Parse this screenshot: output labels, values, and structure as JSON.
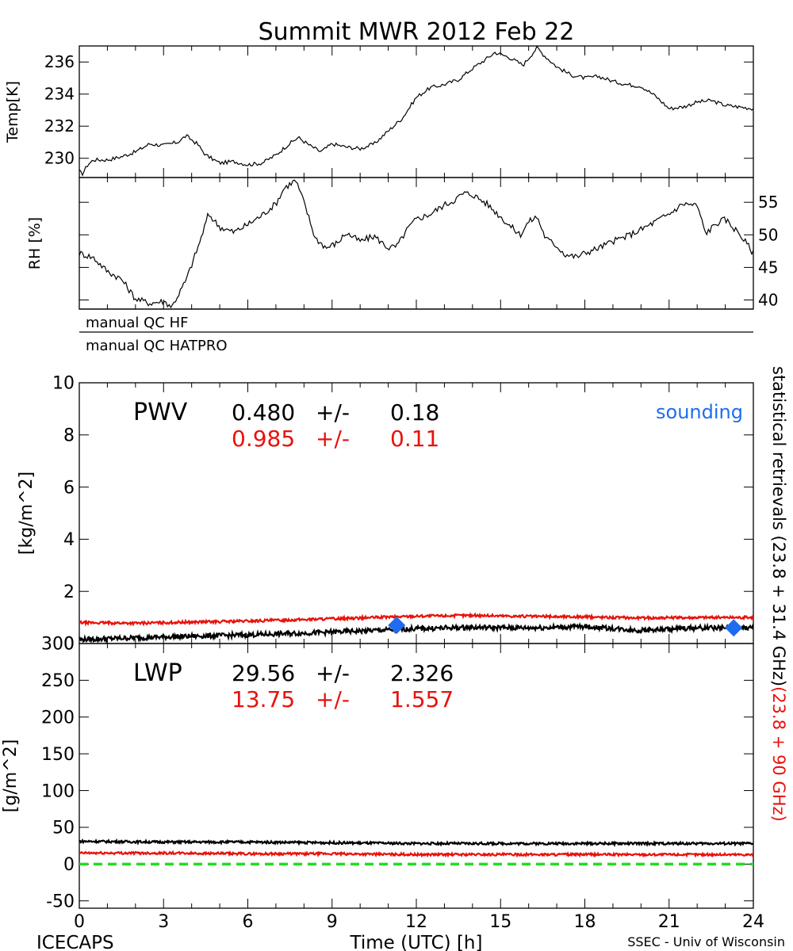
{
  "title": "Summit MWR 2012 Feb 22",
  "footer": {
    "left": "ICECAPS",
    "right": "SSEC - Univ of Wisconsin"
  },
  "colors": {
    "black": "#000000",
    "red": "#e8120c",
    "blue": "#1e6cf0",
    "green": "#22dd22"
  },
  "qc_labels": [
    "manual  QC  HF",
    "manual  QC  HATPRO"
  ],
  "right_vertical_label": {
    "black_part": "statistical  retrievals  (23.8 + 31.4 GHz)",
    "red_part": "(23.8 + 90 GHz)"
  },
  "chart_data": [
    {
      "id": "temp",
      "type": "line",
      "ylabel": "Temp[K]",
      "xlim": [
        0,
        24
      ],
      "ylim": [
        228.8,
        237.0
      ],
      "yticks": [
        230,
        232,
        234,
        236
      ],
      "series": [
        {
          "color": "#000000",
          "x": [
            0.0,
            0.1,
            0.3,
            0.5,
            1.0,
            1.5,
            2.0,
            2.5,
            3.0,
            3.5,
            3.8,
            4.2,
            4.5,
            5.0,
            5.5,
            6.0,
            6.5,
            7.0,
            7.4,
            7.8,
            8.2,
            8.6,
            9.0,
            9.5,
            10.0,
            10.5,
            11.0,
            11.5,
            12.0,
            12.5,
            13.0,
            13.5,
            14.0,
            14.5,
            14.8,
            15.3,
            15.8,
            16.3,
            16.5,
            17.0,
            17.5,
            18.0,
            18.5,
            19.0,
            19.5,
            20.0,
            20.5,
            21.0,
            21.5,
            22.0,
            22.5,
            23.0,
            23.5,
            24.0
          ],
          "y": [
            229.2,
            229.0,
            229.6,
            229.9,
            229.9,
            230.1,
            230.4,
            230.9,
            230.8,
            231.0,
            231.4,
            230.9,
            230.2,
            229.7,
            229.8,
            229.6,
            229.7,
            230.2,
            230.8,
            231.3,
            230.8,
            230.4,
            230.9,
            230.7,
            230.6,
            230.9,
            231.7,
            232.5,
            233.8,
            234.4,
            234.6,
            234.9,
            235.6,
            236.2,
            236.6,
            236.3,
            235.8,
            236.9,
            236.5,
            235.7,
            235.2,
            235.0,
            235.1,
            234.8,
            234.6,
            234.5,
            233.9,
            233.1,
            233.2,
            233.5,
            233.6,
            233.3,
            233.2,
            233.1
          ]
        }
      ]
    },
    {
      "id": "rh",
      "type": "line",
      "ylabel": "RH [%]",
      "xlim": [
        0,
        24
      ],
      "ylim": [
        38.6,
        58.8
      ],
      "yticks": [
        40,
        45,
        50,
        55
      ],
      "series": [
        {
          "color": "#000000",
          "x": [
            0.0,
            0.5,
            1.0,
            1.5,
            2.0,
            2.5,
            3.0,
            3.3,
            3.8,
            4.3,
            4.6,
            5.0,
            5.5,
            6.0,
            6.5,
            7.0,
            7.3,
            7.7,
            8.0,
            8.4,
            8.8,
            9.2,
            9.5,
            10.0,
            10.5,
            11.0,
            11.3,
            11.7,
            12.0,
            12.5,
            13.0,
            13.3,
            13.7,
            14.0,
            14.5,
            15.0,
            15.3,
            15.7,
            16.0,
            16.3,
            16.6,
            17.0,
            17.3,
            17.7,
            18.0,
            18.5,
            19.0,
            19.5,
            20.0,
            20.5,
            21.0,
            21.5,
            22.0,
            22.3,
            22.7,
            23.0,
            23.5,
            24.0
          ],
          "y": [
            47.2,
            46.5,
            44.4,
            43.2,
            40.2,
            39.5,
            39.8,
            39.0,
            43.0,
            49.0,
            53.2,
            51.2,
            50.4,
            51.6,
            53.0,
            54.8,
            57.2,
            58.4,
            55.0,
            49.5,
            48.0,
            48.8,
            50.3,
            49.0,
            49.8,
            48.0,
            48.2,
            51.0,
            52.4,
            53.2,
            54.6,
            55.2,
            56.4,
            56.2,
            54.8,
            52.8,
            51.5,
            50.0,
            52.0,
            52.8,
            49.5,
            48.3,
            47.0,
            46.6,
            47.2,
            48.0,
            49.0,
            49.8,
            50.8,
            52.0,
            53.2,
            54.8,
            54.5,
            50.2,
            51.8,
            52.4,
            50.2,
            47.2
          ]
        }
      ]
    },
    {
      "id": "pwv",
      "type": "line",
      "ylabel": "[kg/m^2]",
      "xlim": [
        0,
        24
      ],
      "ylim": [
        0,
        10
      ],
      "yticks": [
        0,
        2,
        4,
        6,
        8,
        10
      ],
      "label": "PWV",
      "stats": [
        {
          "mean": "0.480",
          "pm": "+/-",
          "sd": "0.18",
          "color": "#000000"
        },
        {
          "mean": "0.985",
          "pm": "+/-",
          "sd": "0.11",
          "color": "#e8120c"
        }
      ],
      "legend": "sounding",
      "series": [
        {
          "color": "#000000",
          "x": [
            0,
            2,
            4,
            6,
            8,
            10,
            12,
            14,
            16,
            18,
            20,
            22,
            24
          ],
          "y": [
            0.15,
            0.22,
            0.28,
            0.33,
            0.4,
            0.48,
            0.57,
            0.62,
            0.6,
            0.65,
            0.5,
            0.6,
            0.6
          ]
        },
        {
          "color": "#e8120c",
          "x": [
            0,
            2,
            4,
            6,
            8,
            10,
            12,
            14,
            16,
            18,
            20,
            22,
            24
          ],
          "y": [
            0.8,
            0.78,
            0.82,
            0.86,
            0.92,
            0.98,
            1.05,
            1.08,
            1.04,
            1.02,
            0.98,
            1.0,
            1.0
          ]
        },
        {
          "color": "#1e6cf0",
          "type": "scatter",
          "x": [
            11.3,
            23.3
          ],
          "y": [
            0.7,
            0.6
          ]
        }
      ]
    },
    {
      "id": "lwp",
      "type": "line",
      "ylabel": "[g/m^2]",
      "xlabel": "Time (UTC) [h]",
      "xlim": [
        0,
        24
      ],
      "ylim": [
        -60,
        300
      ],
      "yticks": [
        -50,
        0,
        50,
        100,
        150,
        200,
        250,
        300
      ],
      "xticks": [
        0,
        3,
        6,
        9,
        12,
        15,
        18,
        21,
        24
      ],
      "label": "LWP",
      "stats": [
        {
          "mean": "29.56",
          "pm": "+/-",
          "sd": "2.326",
          "color": "#000000"
        },
        {
          "mean": "13.75",
          "pm": "+/-",
          "sd": "1.557",
          "color": "#e8120c"
        }
      ],
      "series": [
        {
          "color": "#000000",
          "x": [
            0,
            3,
            6,
            9,
            12,
            15,
            18,
            21,
            24
          ],
          "y": [
            31,
            30,
            30,
            29,
            28,
            28,
            28,
            28,
            28
          ]
        },
        {
          "color": "#e8120c",
          "x": [
            0,
            3,
            6,
            9,
            12,
            15,
            18,
            21,
            24
          ],
          "y": [
            15,
            15,
            14,
            14,
            13,
            13,
            13,
            13,
            13
          ]
        },
        {
          "color": "#22dd22",
          "dashed": true,
          "x": [
            0,
            24
          ],
          "y": [
            0,
            0
          ]
        }
      ]
    }
  ]
}
